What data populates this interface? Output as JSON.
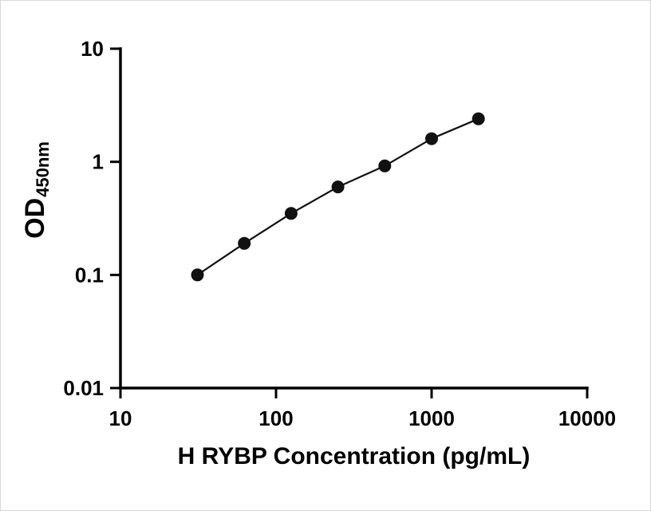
{
  "chart_data": {
    "type": "scatter",
    "line": true,
    "title": "",
    "xlabel": "H RYBP Concentration (pg/mL)",
    "ylabel_main": "OD",
    "ylabel_sub": "450nm",
    "x_scale": "log",
    "y_scale": "log",
    "xlim": [
      10,
      10000
    ],
    "ylim": [
      0.01,
      10
    ],
    "x_ticks": [
      10,
      100,
      1000,
      10000
    ],
    "x_tick_labels": [
      "10",
      "100",
      "1000",
      "10000"
    ],
    "y_ticks": [
      0.01,
      0.1,
      1,
      10
    ],
    "y_tick_labels": [
      "0.01",
      "0.1",
      "1",
      "10"
    ],
    "grid": false,
    "legend": "none",
    "points": [
      {
        "x": 31.25,
        "y": 0.1
      },
      {
        "x": 62.5,
        "y": 0.19
      },
      {
        "x": 125,
        "y": 0.35
      },
      {
        "x": 250,
        "y": 0.6
      },
      {
        "x": 500,
        "y": 0.92
      },
      {
        "x": 1000,
        "y": 1.6
      },
      {
        "x": 2000,
        "y": 2.4
      }
    ],
    "marker_color": "#111111",
    "line_color": "#111111",
    "axis_color": "#000000",
    "tick_label_color": "#000000"
  }
}
